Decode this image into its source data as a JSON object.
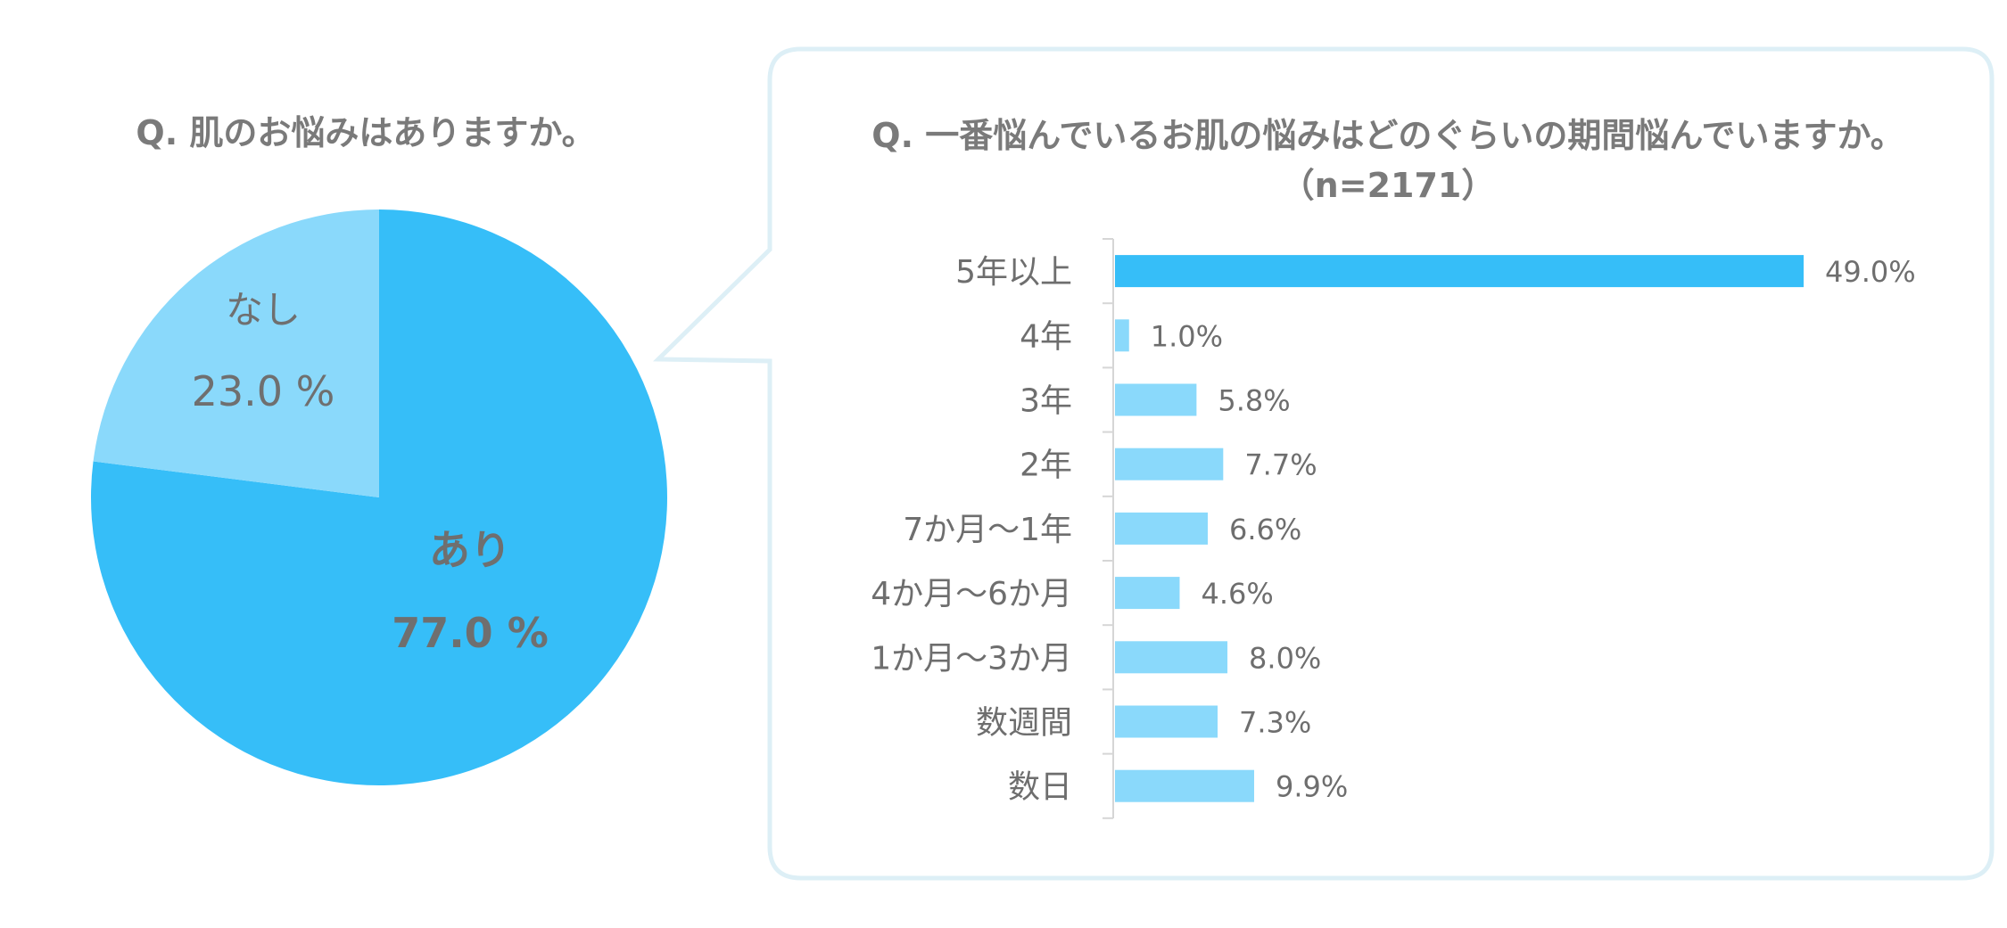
{
  "colors": {
    "primary": "#36BEF8",
    "secondary": "#8AD9FB",
    "callout_border": "#DDEFF6",
    "text": "#6E6E6E",
    "title": "#7A7A7A"
  },
  "chart_data": [
    {
      "type": "pie",
      "title": "Q. 肌のお悩みはありますか。",
      "slices": [
        {
          "label": "あり",
          "value": 77.0,
          "value_label": "77.0 %",
          "color": "#36BEF8"
        },
        {
          "label": "なし",
          "value": 23.0,
          "value_label": "23.0 %",
          "color": "#8AD9FB"
        }
      ]
    },
    {
      "type": "bar",
      "orientation": "horizontal",
      "title": "Q. 一番悩んでいるお肌の悩みはどのぐらいの期間悩んでいますか。",
      "subtitle": "（n=2171）",
      "categories": [
        "5年以上",
        "4年",
        "3年",
        "2年",
        "7か月～1年",
        "4か月～6か月",
        "1か月～3か月",
        "数週間",
        "数日"
      ],
      "values": [
        49.0,
        1.0,
        5.8,
        7.7,
        6.6,
        4.6,
        8.0,
        7.3,
        9.9
      ],
      "value_labels": [
        "49.0%",
        "1.0%",
        "5.8%",
        "7.7%",
        "6.6%",
        "4.6%",
        "8.0%",
        "7.3%",
        "9.9%"
      ],
      "highlight_index": 0,
      "xlim": [
        0,
        49.0
      ]
    }
  ]
}
